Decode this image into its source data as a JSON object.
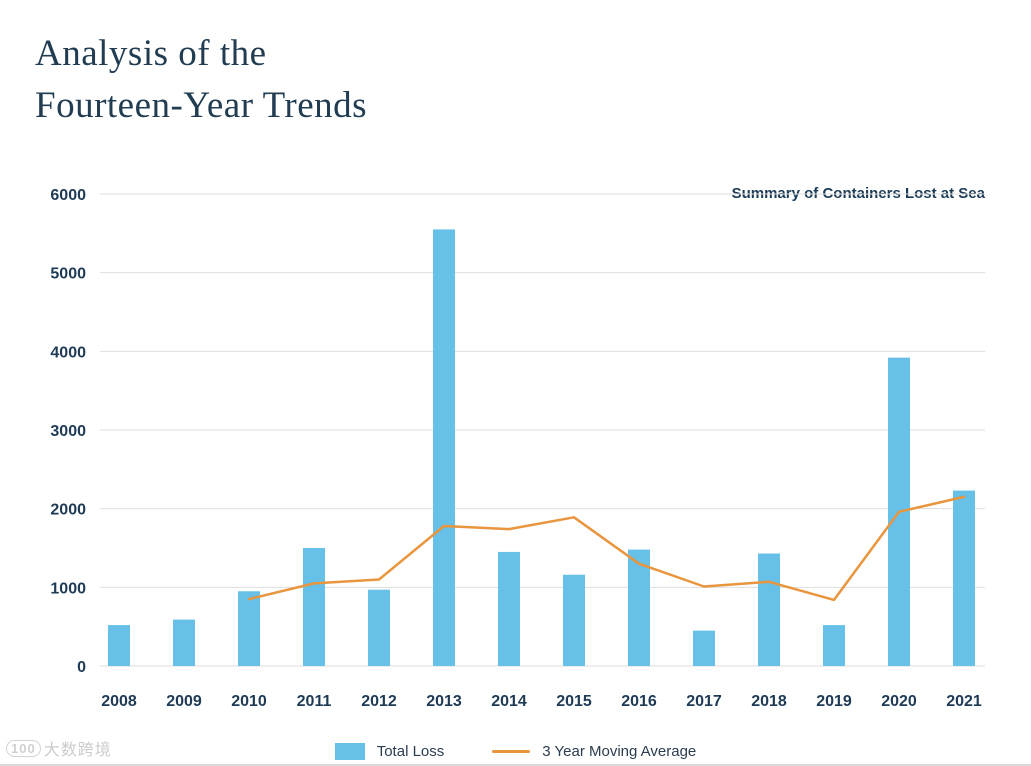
{
  "page": {
    "title_line1": "Analysis of the",
    "title_line2": "Fourteen-Year Trends"
  },
  "watermark": {
    "logo": "100",
    "text": "大数跨境"
  },
  "chart_data": {
    "type": "bar",
    "title": "Summary of Containers Lost at Sea",
    "categories": [
      "2008",
      "2009",
      "2010",
      "2011",
      "2012",
      "2013",
      "2014",
      "2015",
      "2016",
      "2017",
      "2018",
      "2019",
      "2020",
      "2021"
    ],
    "series": [
      {
        "name": "Total Loss",
        "type": "bar",
        "color": "#66c0e8",
        "values": [
          520,
          590,
          950,
          1500,
          970,
          5550,
          1450,
          1160,
          1480,
          450,
          1430,
          520,
          3920,
          2230
        ]
      },
      {
        "name": "3 Year Moving Average",
        "type": "line",
        "color": "#e9953e",
        "values": [
          null,
          null,
          850,
          1050,
          1100,
          1780,
          1740,
          1890,
          1300,
          1010,
          1070,
          840,
          1960,
          2150
        ]
      }
    ],
    "xlabel": "",
    "ylabel": "",
    "ylim": [
      0,
      6000
    ],
    "yticks": [
      0,
      1000,
      2000,
      3000,
      4000,
      5000,
      6000
    ],
    "grid": true,
    "legend_position": "bottom"
  }
}
